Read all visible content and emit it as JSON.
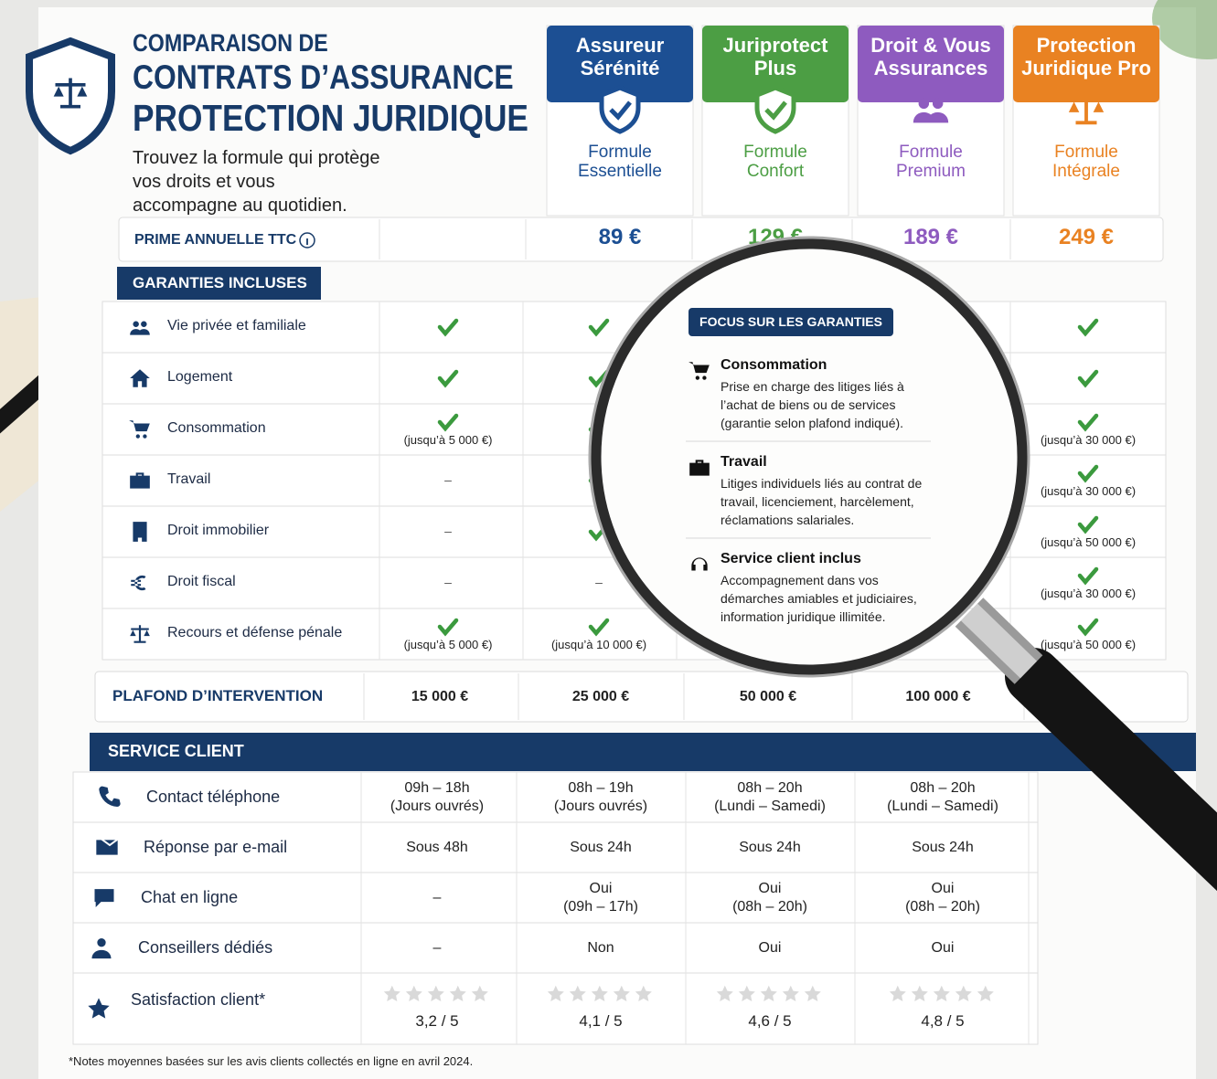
{
  "header": {
    "title_lines": [
      "COMPARAISON DE",
      "CONTRATS D’ASSURANCE",
      "PROTECTION JURIDIQUE"
    ],
    "subtitle": "Trouvez la formule qui protège vos droits et vous accompagne au quotidien."
  },
  "providers": [
    {
      "name": "Assureur Sérénité",
      "formula": "Formule Essentielle",
      "price": "89 €",
      "color": "#1c4f93"
    },
    {
      "name": "Juriprotect Plus",
      "formula": "Formule Confort",
      "price": "129 €",
      "color": "#4c9e44"
    },
    {
      "name": "Droit & Vous Assurances",
      "formula": "Formule Premium",
      "price": "189 €",
      "color": "#8e5bbf"
    },
    {
      "name": "Protection Juridique Pro",
      "formula": "Formule Intégrale",
      "price": "249 €",
      "color": "#e98222"
    }
  ],
  "price_label": "PRIME ANNUELLE TTC",
  "guarantees": {
    "title": "GARANTIES INCLUSES",
    "rows": [
      {
        "label": "Vie privée et familiale",
        "cells": [
          {
            "check": true
          },
          {
            "check": true
          },
          null,
          {
            "check": true
          }
        ]
      },
      {
        "label": "Logement",
        "cells": [
          {
            "check": true
          },
          {
            "check": true
          },
          null,
          {
            "check": true
          }
        ]
      },
      {
        "label": "Consommation",
        "cells": [
          {
            "check": true,
            "note": "(jusqu’à 5 000 €)"
          },
          {
            "check": true
          },
          null,
          {
            "check": true,
            "note": "(jusqu’à 30 000 €)"
          }
        ]
      },
      {
        "label": "Travail",
        "cells": [
          {
            "text": "–"
          },
          {
            "check": true
          },
          null,
          {
            "check": true,
            "note": "(jusqu’à 30 000 €)"
          }
        ]
      },
      {
        "label": "Droit immobilier",
        "cells": [
          {
            "text": "–"
          },
          {
            "check": true
          },
          null,
          {
            "check": true,
            "note": "(jusqu’à 50 000 €)"
          }
        ]
      },
      {
        "label": "Droit fiscal",
        "cells": [
          {
            "text": "–"
          },
          {
            "text": "–"
          },
          null,
          {
            "check": true,
            "note": "(jusqu’à 30 000 €)"
          }
        ]
      },
      {
        "label": "Recours et défense pénale",
        "cells": [
          {
            "check": true,
            "note": "(jusqu’à 5 000 €)"
          },
          {
            "check": true,
            "note": "(jusqu’à 10 000 €)"
          },
          null,
          {
            "check": true,
            "note": "(jusqu’à 50 000 €)"
          }
        ]
      }
    ]
  },
  "ceiling": {
    "label": "PLAFOND D’INTERVENTION",
    "values": [
      "15 000 €",
      "25 000 €",
      "50 000 €",
      "100 000 €"
    ]
  },
  "service": {
    "title": "SERVICE CLIENT",
    "rows": [
      {
        "label": "Contact téléphone",
        "cells": [
          "09h – 18h\n(Jours ouvrés)",
          "08h – 19h\n(Jours ouvrés)",
          "08h – 20h\n(Lundi – Samedi)",
          "08h – 20h\n(Lundi – Samedi)"
        ]
      },
      {
        "label": "Réponse par e-mail",
        "cells": [
          "Sous 48h",
          "Sous 24h",
          "Sous 24h",
          "Sous 24h"
        ]
      },
      {
        "label": "Chat en ligne",
        "cells": [
          "–",
          "Oui\n(09h – 17h)",
          "Oui\n(08h – 20h)",
          "Oui\n(08h – 20h)"
        ]
      },
      {
        "label": "Conseillers dédiés",
        "cells": [
          "–",
          "Non",
          "Oui",
          "Oui"
        ]
      }
    ],
    "rating": {
      "label": "Satisfaction client*",
      "max": 5,
      "values": [
        {
          "value": 3.2,
          "label": "3,2 / 5"
        },
        {
          "value": 4.1,
          "label": "4,1 / 5"
        },
        {
          "value": 4.6,
          "label": "4,6 / 5"
        },
        {
          "value": 4.8,
          "label": "4,8 / 5"
        }
      ]
    }
  },
  "footnote": "*Notes moyennes basées sur les avis clients collectés en ligne en avril 2024.",
  "focus": {
    "title": "FOCUS SUR LES GARANTIES",
    "items": [
      {
        "title": "Consommation",
        "text": "Prise en charge des litiges liés à l’achat de biens ou de services (garantie selon plafond indiqué)."
      },
      {
        "title": "Travail",
        "text": "Litiges individuels liés au contrat de travail, licenciement, harcèlement, réclamations salariales."
      },
      {
        "title": "Service client inclus",
        "text": "Accompagnement dans vos démarches amiables et judiciaires, information juridique illimitée."
      }
    ]
  }
}
